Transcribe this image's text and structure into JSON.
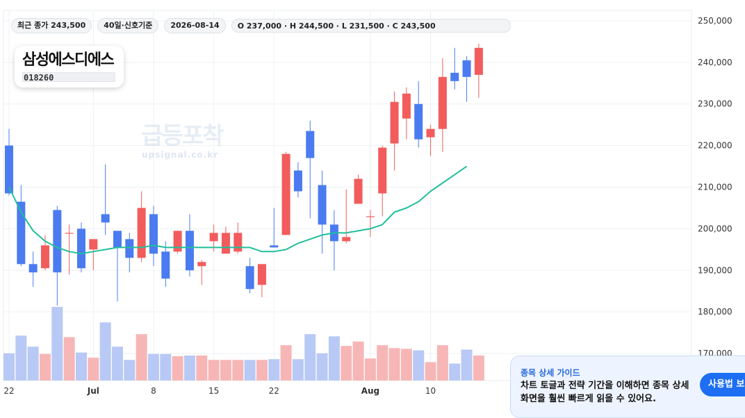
{
  "info_bar": {
    "close_label": "최근 종가 243,500",
    "period_label": "40일·신호기준",
    "date_label": "2026-08-14",
    "ohlc_label": "O 237,000 · H 244,500 · L 231,500 · C 243,500"
  },
  "stock": {
    "name": "삼성에스디에스",
    "code": "018260"
  },
  "watermark": {
    "main": "급등포착",
    "sub": "upsignal.co.kr"
  },
  "guide": {
    "label": "종목 상세 가이드",
    "text": "차트 토글과 전략 기간을 이해하면 종목 상세 화면을 훨씬 빠르게 읽을 수 있어요.",
    "button": "사용법 보기"
  },
  "colors": {
    "up": "#f25c5c",
    "down": "#4a7bf0",
    "up_volume": "#f7b6b6",
    "down_volume": "#b8c9f5",
    "ma_line": "#1fbf9a"
  },
  "chart_data": {
    "type": "candlestick",
    "title": "",
    "yticks": [
      170000,
      180000,
      190000,
      200000,
      210000,
      220000,
      230000,
      240000,
      250000
    ],
    "ylim": [
      163500,
      252500
    ],
    "xtick_labels": [
      {
        "label": "22",
        "index": 0
      },
      {
        "label": "Jul",
        "index": 7
      },
      {
        "label": "8",
        "index": 12
      },
      {
        "label": "15",
        "index": 17
      },
      {
        "label": "22",
        "index": 22
      },
      {
        "label": "Aug",
        "index": 30
      },
      {
        "label": "10",
        "index": 35
      }
    ],
    "grid": true,
    "ohlc": [
      [
        220000,
        224000,
        208000,
        208500
      ],
      [
        206500,
        210500,
        191000,
        191500
      ],
      [
        191500,
        194500,
        186000,
        189500
      ],
      [
        190500,
        198500,
        190000,
        196000
      ],
      [
        204500,
        205500,
        181500,
        189500
      ],
      [
        199000,
        201000,
        189000,
        199000
      ],
      [
        200000,
        201500,
        189500,
        190500
      ],
      [
        195000,
        197500,
        190000,
        197500
      ],
      [
        203500,
        215500,
        198500,
        201500
      ],
      [
        199500,
        199500,
        182500,
        195500
      ],
      [
        197500,
        199000,
        189500,
        193000
      ],
      [
        193000,
        209000,
        192000,
        205000
      ],
      [
        203500,
        205500,
        191000,
        194000
      ],
      [
        194500,
        197000,
        186000,
        188000
      ],
      [
        194500,
        199500,
        194000,
        199500
      ],
      [
        199500,
        203500,
        188500,
        190000
      ],
      [
        191000,
        192500,
        186500,
        192000
      ],
      [
        197000,
        201000,
        194500,
        199000
      ],
      [
        194000,
        200500,
        194000,
        199000
      ],
      [
        194500,
        201500,
        194000,
        199000
      ],
      [
        191000,
        193000,
        184500,
        185500
      ],
      [
        186500,
        191000,
        183500,
        191500
      ],
      [
        196000,
        205000,
        195500,
        195500
      ],
      [
        198500,
        218500,
        198500,
        218000
      ],
      [
        214000,
        216000,
        207500,
        209000
      ],
      [
        223500,
        226000,
        202500,
        217000
      ],
      [
        210500,
        214000,
        194000,
        201000
      ],
      [
        201000,
        204500,
        190000,
        197000
      ],
      [
        197000,
        209500,
        196500,
        198000
      ],
      [
        206000,
        213000,
        206000,
        212000
      ],
      [
        203000,
        204500,
        198000,
        203000
      ],
      [
        208500,
        220000,
        203000,
        219500
      ],
      [
        220500,
        233000,
        214000,
        230500
      ],
      [
        226500,
        234000,
        221500,
        232500
      ],
      [
        230000,
        235500,
        219500,
        221500
      ],
      [
        222000,
        225000,
        217500,
        224000
      ],
      [
        224000,
        241000,
        218500,
        236500
      ],
      [
        237500,
        243500,
        233500,
        235500
      ],
      [
        240500,
        241500,
        230500,
        236500
      ],
      [
        237000,
        244500,
        231500,
        243500
      ]
    ],
    "volume_levels": [
      0.37,
      0.61,
      0.46,
      0.36,
      1.0,
      0.59,
      0.38,
      0.31,
      0.79,
      0.46,
      0.28,
      0.63,
      0.36,
      0.36,
      0.33,
      0.34,
      0.34,
      0.28,
      0.28,
      0.28,
      0.28,
      0.28,
      0.29,
      0.48,
      0.29,
      0.63,
      0.37,
      0.6,
      0.47,
      0.53,
      0.3,
      0.48,
      0.44,
      0.43,
      0.41,
      0.25,
      0.48,
      0.23,
      0.42,
      0.34
    ],
    "ma_line": [
      210000,
      204000,
      199500,
      197000,
      195500,
      194500,
      194000,
      194500,
      195000,
      195500,
      195500,
      195500,
      196000,
      195500,
      195500,
      195500,
      195500,
      195500,
      195500,
      195500,
      195500,
      194500,
      194500,
      195000,
      196500,
      197500,
      198500,
      199000,
      199000,
      199500,
      200000,
      201000,
      204000,
      205000,
      206500,
      209000,
      211000,
      213000,
      215000
    ]
  }
}
